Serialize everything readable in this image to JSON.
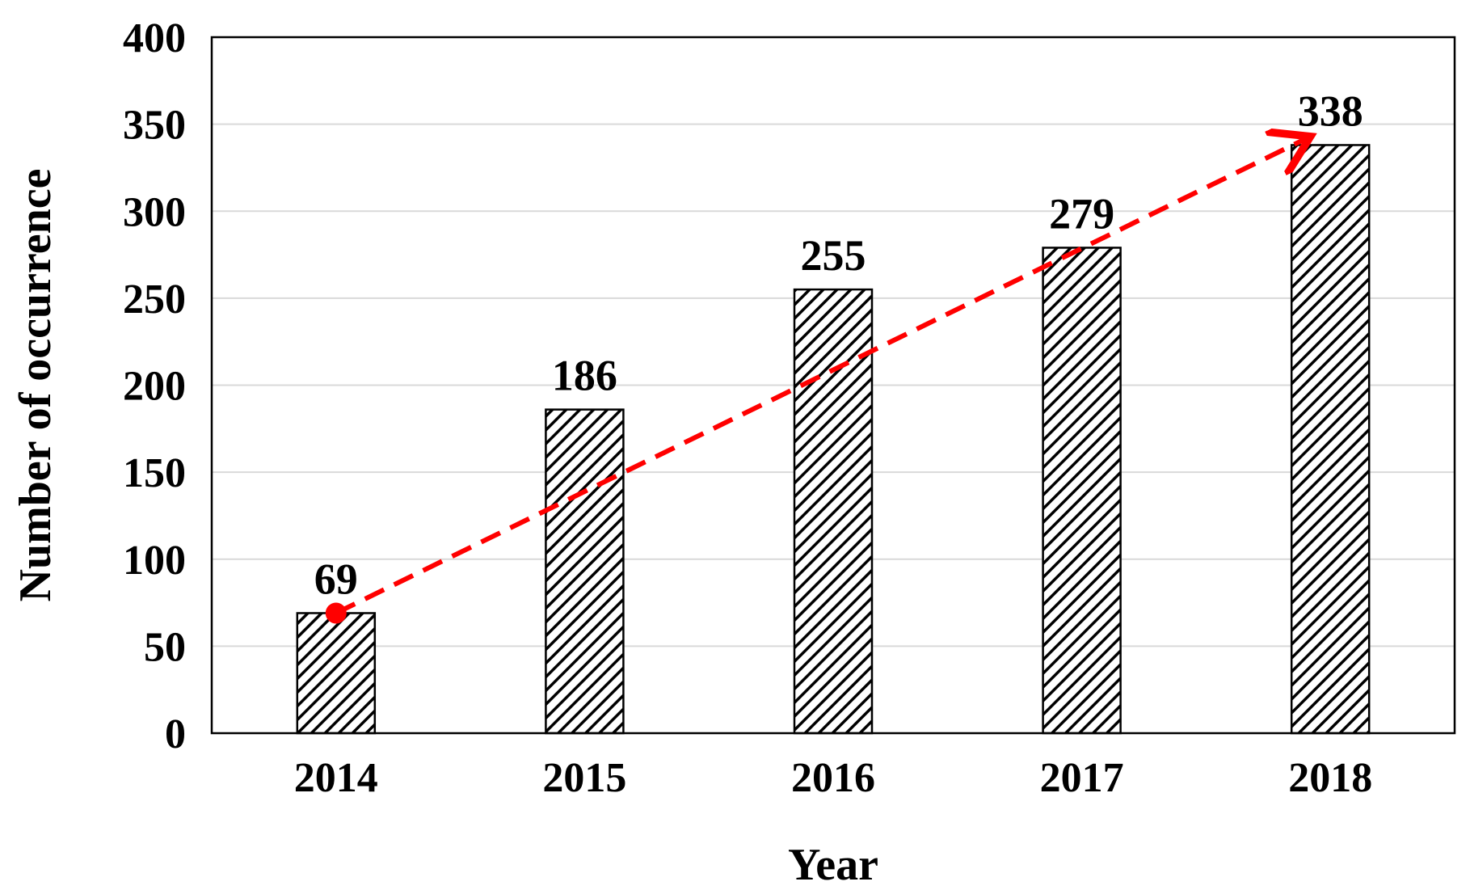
{
  "chart_data": {
    "type": "bar",
    "xlabel": "Year",
    "ylabel": "Number of occurrence",
    "categories": [
      "2014",
      "2015",
      "2016",
      "2017",
      "2018"
    ],
    "values": [
      69,
      186,
      255,
      279,
      338
    ],
    "data_labels": [
      "69",
      "186",
      "255",
      "279",
      "338"
    ],
    "ylim": [
      0,
      400
    ],
    "yticks": [
      0,
      50,
      100,
      150,
      200,
      250,
      300,
      350,
      400
    ],
    "ytick_labels": [
      "0",
      "50",
      "100",
      "150",
      "200",
      "250",
      "300",
      "350",
      "400"
    ],
    "grid": true,
    "bar_fill": "diagonal hatch",
    "trend_arrow": {
      "from_category": "2014",
      "from_value": 69,
      "to_category": "2018",
      "to_value": 338,
      "style": "dashed",
      "color": "#ff0000"
    },
    "colors": {
      "bar_stroke": "#000000",
      "hatch": "#000000",
      "grid": "#d9d9d9",
      "trend": "#ff0000"
    }
  }
}
